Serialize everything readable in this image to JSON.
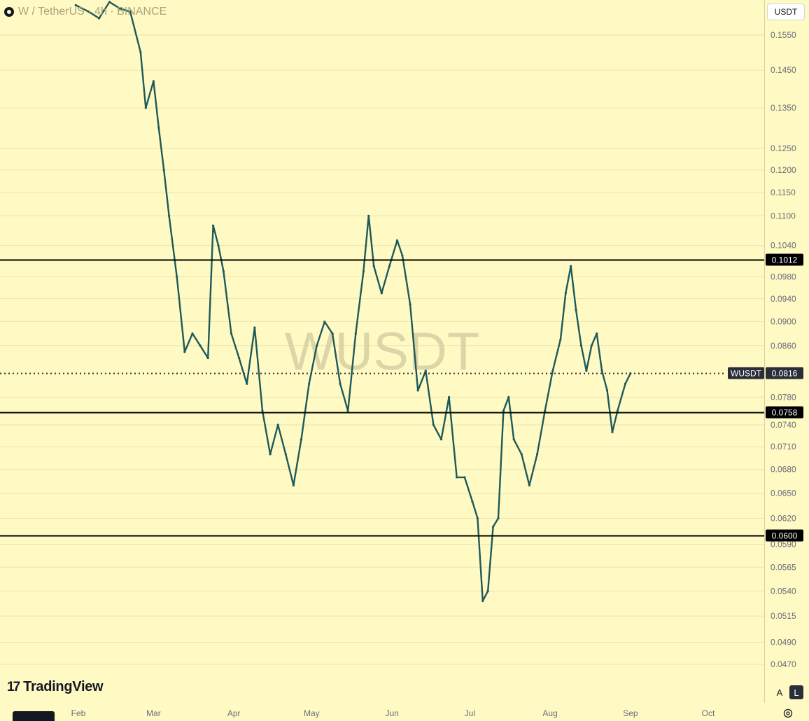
{
  "header": {
    "symbol_title": "W / TetherUS · 4h · BINANCE"
  },
  "currency_button": {
    "label": "USDT"
  },
  "watermark": "WUSDT",
  "logo": {
    "mark": "17",
    "text": "TradingView"
  },
  "scale_buttons": {
    "auto": "A",
    "log": "L"
  },
  "chart_data": {
    "type": "candlestick",
    "symbol": "WUSDT",
    "interval": "4h",
    "exchange": "BINANCE",
    "quote": "USDT",
    "y_scale": "log",
    "y_ticks": [
      "0.1550",
      "0.1450",
      "0.1350",
      "0.1250",
      "0.1200",
      "0.1150",
      "0.1100",
      "0.1040",
      "0.0980",
      "0.0940",
      "0.0900",
      "0.0860",
      "0.0780",
      "0.0740",
      "0.0710",
      "0.0680",
      "0.0650",
      "0.0620",
      "0.0590",
      "0.0565",
      "0.0540",
      "0.0515",
      "0.0490",
      "0.0470"
    ],
    "x_ticks": [
      "Feb",
      "Mar",
      "Apr",
      "May",
      "Jun",
      "Jul",
      "Aug",
      "Sep",
      "Oct"
    ],
    "price_lines": [
      {
        "price": "0.1012",
        "style": "solid"
      },
      {
        "price": "0.0758",
        "style": "solid"
      },
      {
        "price": "0.0600",
        "style": "solid"
      }
    ],
    "last_price": {
      "label": "WUSDT",
      "price": "0.0816",
      "style": "dotted"
    },
    "series": [
      {
        "name": "WUSDT",
        "values": [
          [
            "2024-01-31",
            0.164
          ],
          [
            "2024-02-05",
            0.162
          ],
          [
            "2024-02-09",
            0.16
          ],
          [
            "2024-02-13",
            0.165
          ],
          [
            "2024-02-17",
            0.163
          ],
          [
            "2024-02-21",
            0.162
          ],
          [
            "2024-02-25",
            0.15
          ],
          [
            "2024-02-27",
            0.135
          ],
          [
            "2024-03-01",
            0.142
          ],
          [
            "2024-03-03",
            0.13
          ],
          [
            "2024-03-05",
            0.12
          ],
          [
            "2024-03-07",
            0.11
          ],
          [
            "2024-03-10",
            0.098
          ],
          [
            "2024-03-13",
            0.085
          ],
          [
            "2024-03-16",
            0.088
          ],
          [
            "2024-03-19",
            0.086
          ],
          [
            "2024-03-22",
            0.084
          ],
          [
            "2024-03-24",
            0.108
          ],
          [
            "2024-03-26",
            0.104
          ],
          [
            "2024-03-28",
            0.099
          ],
          [
            "2024-03-31",
            0.088
          ],
          [
            "2024-04-03",
            0.084
          ],
          [
            "2024-04-06",
            0.08
          ],
          [
            "2024-04-09",
            0.089
          ],
          [
            "2024-04-12",
            0.076
          ],
          [
            "2024-04-15",
            0.07
          ],
          [
            "2024-04-18",
            0.074
          ],
          [
            "2024-04-21",
            0.07
          ],
          [
            "2024-04-24",
            0.066
          ],
          [
            "2024-04-27",
            0.072
          ],
          [
            "2024-04-30",
            0.08
          ],
          [
            "2024-05-03",
            0.086
          ],
          [
            "2024-05-06",
            0.09
          ],
          [
            "2024-05-09",
            0.088
          ],
          [
            "2024-05-12",
            0.08
          ],
          [
            "2024-05-15",
            0.076
          ],
          [
            "2024-05-18",
            0.088
          ],
          [
            "2024-05-21",
            0.099
          ],
          [
            "2024-05-23",
            0.11
          ],
          [
            "2024-05-25",
            0.1
          ],
          [
            "2024-05-28",
            0.095
          ],
          [
            "2024-05-31",
            0.1
          ],
          [
            "2024-06-03",
            0.105
          ],
          [
            "2024-06-05",
            0.102
          ],
          [
            "2024-06-08",
            0.093
          ],
          [
            "2024-06-11",
            0.079
          ],
          [
            "2024-06-14",
            0.082
          ],
          [
            "2024-06-17",
            0.074
          ],
          [
            "2024-06-20",
            0.072
          ],
          [
            "2024-06-23",
            0.078
          ],
          [
            "2024-06-26",
            0.067
          ],
          [
            "2024-06-29",
            0.067
          ],
          [
            "2024-07-02",
            0.064
          ],
          [
            "2024-07-04",
            0.062
          ],
          [
            "2024-07-06",
            0.053
          ],
          [
            "2024-07-08",
            0.054
          ],
          [
            "2024-07-10",
            0.061
          ],
          [
            "2024-07-12",
            0.062
          ],
          [
            "2024-07-14",
            0.076
          ],
          [
            "2024-07-16",
            0.078
          ],
          [
            "2024-07-18",
            0.072
          ],
          [
            "2024-07-21",
            0.07
          ],
          [
            "2024-07-24",
            0.066
          ],
          [
            "2024-07-27",
            0.07
          ],
          [
            "2024-07-30",
            0.076
          ],
          [
            "2024-08-02",
            0.082
          ],
          [
            "2024-08-05",
            0.087
          ],
          [
            "2024-08-07",
            0.095
          ],
          [
            "2024-08-09",
            0.1
          ],
          [
            "2024-08-11",
            0.092
          ],
          [
            "2024-08-13",
            0.086
          ],
          [
            "2024-08-15",
            0.082
          ],
          [
            "2024-08-17",
            0.086
          ],
          [
            "2024-08-19",
            0.088
          ],
          [
            "2024-08-21",
            0.082
          ],
          [
            "2024-08-23",
            0.079
          ],
          [
            "2024-08-25",
            0.073
          ],
          [
            "2024-08-27",
            0.076
          ],
          [
            "2024-08-30",
            0.08
          ],
          [
            "2024-09-01",
            0.0816
          ]
        ]
      }
    ]
  }
}
